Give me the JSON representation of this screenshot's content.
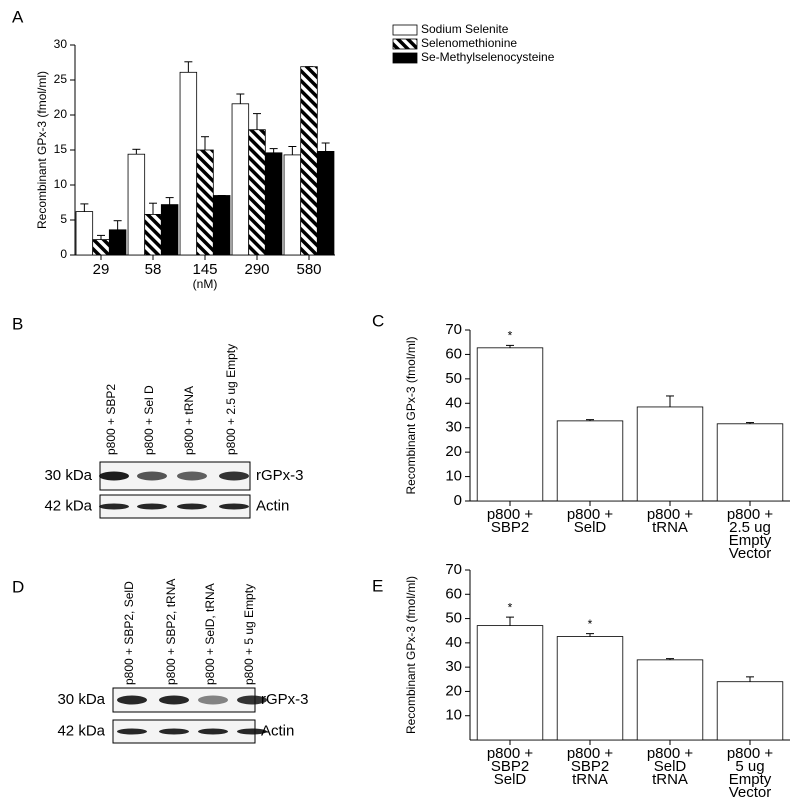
{
  "chart_data": [
    {
      "type": "bar",
      "label": "A",
      "ylabel": "Recombinant GPx-3 (fmol/ml)",
      "xlabel": "(nM)",
      "categories": [
        "29",
        "58",
        "145",
        "290",
        "580"
      ],
      "ylim": [
        0,
        30
      ],
      "yticks": [
        0,
        5,
        10,
        15,
        20,
        25,
        30
      ],
      "series": [
        {
          "name": "Sodium Selenite",
          "color": "#ffffff",
          "hatch": false,
          "values": [
            6.2,
            14.4,
            26.1,
            21.6,
            14.3
          ],
          "errors": [
            1.1,
            0.7,
            1.5,
            1.4,
            1.2
          ]
        },
        {
          "name": "Selenomethionine",
          "color": "#000000",
          "hatch": true,
          "values": [
            2.2,
            5.8,
            15.0,
            17.9,
            26.9
          ],
          "errors": [
            0.6,
            1.6,
            1.9,
            2.3,
            0
          ]
        },
        {
          "name": "Se-Methylselenocysteine",
          "color": "#000000",
          "hatch": false,
          "values": [
            3.6,
            7.2,
            8.5,
            14.6,
            14.8
          ],
          "errors": [
            1.3,
            1.0,
            0,
            0.6,
            1.2
          ]
        }
      ]
    },
    {
      "type": "bar",
      "label": "C",
      "ylabel": "Recombinant GPx-3 (fmol/ml)",
      "categories": [
        [
          "p800 +",
          "SBP2"
        ],
        [
          "p800 +",
          "SelD"
        ],
        [
          "p800 +",
          "tRNA"
        ],
        [
          "p800 +",
          "2.5 ug",
          "Empty",
          "Vector"
        ]
      ],
      "ylim": [
        0,
        70
      ],
      "yticks": [
        0,
        10,
        20,
        30,
        40,
        50,
        60,
        70
      ],
      "series": [
        {
          "color": "#ffffff",
          "hatch": false,
          "values": [
            62.7,
            32.8,
            38.5,
            31.6
          ],
          "errors": [
            1.0,
            0.5,
            4.5,
            0.5
          ],
          "markers": [
            {
              "index": 0,
              "text": "*"
            }
          ]
        }
      ]
    },
    {
      "type": "bar",
      "label": "E",
      "ylabel": "Recombinant GPx-3 (fmol/ml)",
      "categories": [
        [
          "p800 +",
          "SBP2",
          "SelD"
        ],
        [
          "p800 +",
          "SBP2",
          "tRNA"
        ],
        [
          "p800 +",
          "SelD",
          "tRNA"
        ],
        [
          "p800 +",
          "5 ug",
          "Empty",
          "Vector"
        ]
      ],
      "ylim": [
        0,
        70
      ],
      "yticks": [
        10,
        20,
        30,
        40,
        50,
        60,
        70
      ],
      "series": [
        {
          "color": "#ffffff",
          "hatch": false,
          "values": [
            47.1,
            42.6,
            33.0,
            24.0
          ],
          "errors": [
            3.5,
            1.2,
            0.5,
            2.0
          ],
          "markers": [
            {
              "index": 0,
              "text": "*"
            },
            {
              "index": 1,
              "text": "*"
            }
          ]
        }
      ]
    }
  ],
  "blots": [
    {
      "label": "B",
      "lanes": [
        "p800 + SBP2",
        "p800 + Sel D",
        "p800 + tRNA",
        "p800 + 2.5 ug Empty"
      ],
      "rows": [
        {
          "size": "30 kDa",
          "name": "rGPx-3"
        },
        {
          "size": "42 kDa",
          "name": "Actin"
        }
      ]
    },
    {
      "label": "D",
      "lanes": [
        "p800 + SBP2, SelD",
        "p800 + SBP2, tRNA",
        "p800 + SelD, tRNA",
        "p800 + 5 ug Empty"
      ],
      "rows": [
        {
          "size": "30 kDa",
          "name": "rGPx-3"
        },
        {
          "size": "42 kDa",
          "name": "Actin"
        }
      ]
    }
  ]
}
